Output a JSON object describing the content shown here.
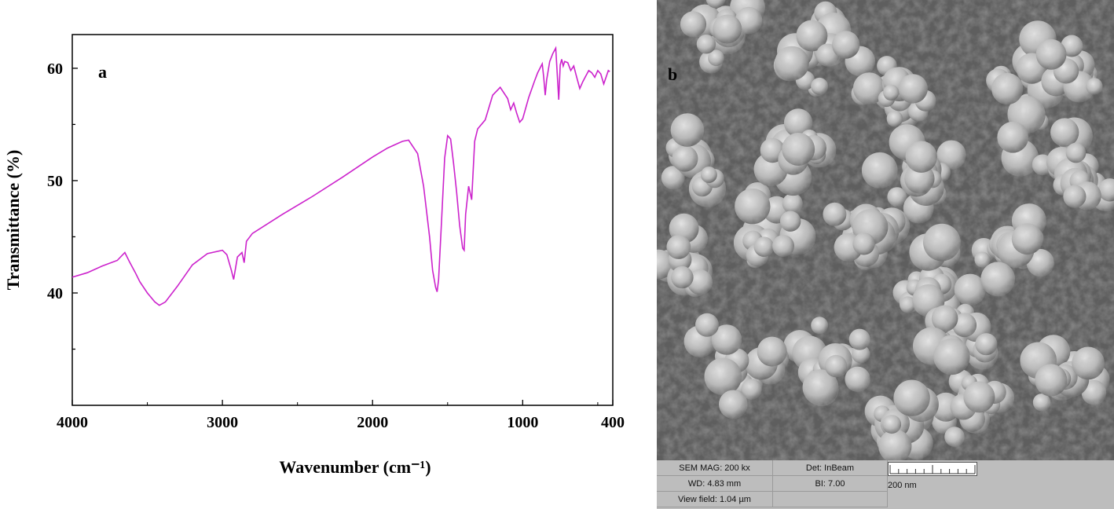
{
  "chart_data": {
    "type": "line",
    "panel_label": "a",
    "xlabel": "Wavenumber (cm⁻¹)",
    "ylabel": "Transmittance (%)",
    "xlim": [
      4000,
      400
    ],
    "ylim": [
      30,
      63
    ],
    "x_inverted": true,
    "xticks": [
      4000,
      3000,
      2000,
      1000,
      400
    ],
    "yticks": [
      40,
      50,
      60
    ],
    "grid": false,
    "line_color": "#cc22cc",
    "series": [
      {
        "x": [
          4000,
          3900,
          3800,
          3700,
          3650,
          3620,
          3580,
          3550,
          3500,
          3450,
          3420,
          3380,
          3300,
          3200,
          3100,
          3000,
          2970,
          2940,
          2925,
          2900,
          2870,
          2855,
          2840,
          2800,
          2600,
          2400,
          2200,
          2000,
          1900,
          1800,
          1760,
          1700,
          1660,
          1620,
          1600,
          1580,
          1570,
          1560,
          1540,
          1520,
          1500,
          1480,
          1460,
          1440,
          1420,
          1400,
          1390,
          1380,
          1360,
          1340,
          1320,
          1300,
          1250,
          1200,
          1150,
          1100,
          1080,
          1060,
          1040,
          1020,
          1000,
          960,
          920,
          900,
          870,
          860,
          850,
          840,
          820,
          800,
          780,
          770,
          760,
          750,
          740,
          730,
          720,
          700,
          680,
          660,
          640,
          620,
          600,
          580,
          560,
          540,
          520,
          500,
          480,
          460,
          440,
          430,
          420
        ],
        "y": [
          41.4,
          41.8,
          42.4,
          42.9,
          43.6,
          42.8,
          41.8,
          41.0,
          40.0,
          39.2,
          38.9,
          39.2,
          40.6,
          42.5,
          43.5,
          43.8,
          43.4,
          42.0,
          41.2,
          43.2,
          43.6,
          42.7,
          44.6,
          45.3,
          47.0,
          48.6,
          50.3,
          52.1,
          52.9,
          53.5,
          53.6,
          52.4,
          49.5,
          45.0,
          42.0,
          40.5,
          40.1,
          41.2,
          46.5,
          52.0,
          54.0,
          53.7,
          51.5,
          49.0,
          46.0,
          44.0,
          43.8,
          47.0,
          49.5,
          48.3,
          53.5,
          54.6,
          55.4,
          57.6,
          58.3,
          57.3,
          56.3,
          56.9,
          56.0,
          55.2,
          55.5,
          57.4,
          58.9,
          59.6,
          60.4,
          59.2,
          57.6,
          59.0,
          60.6,
          61.3,
          61.8,
          59.5,
          57.2,
          60.3,
          60.8,
          60.2,
          60.6,
          60.5,
          59.8,
          60.2,
          59.2,
          58.2,
          58.8,
          59.3,
          59.8,
          59.6,
          59.2,
          59.8,
          59.5,
          58.6,
          59.4,
          59.8,
          59.7
        ]
      }
    ]
  },
  "sem": {
    "panel_label": "b",
    "mag": "SEM MAG: 200 kx",
    "det": "Det: InBeam",
    "wd": "WD: 4.83 mm",
    "bi": "BI: 7.00",
    "view_field": "View field: 1.04 µm",
    "scale": "200 nm"
  }
}
